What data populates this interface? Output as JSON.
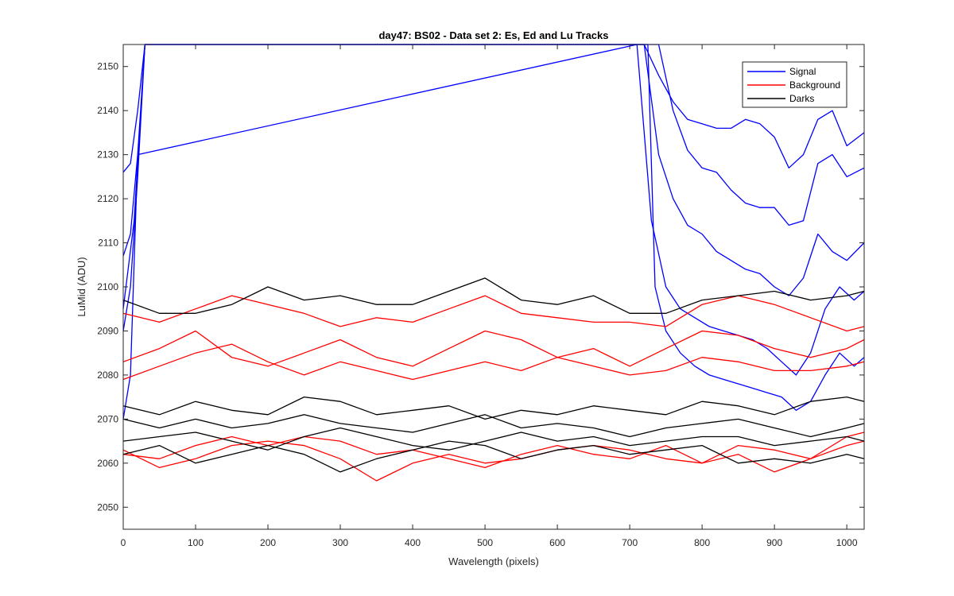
{
  "chart_data": {
    "type": "line",
    "title": "day47: BS02 - Data set 2: Es, Ed and Lu Tracks",
    "xlabel": "Wavelength (pixels)",
    "ylabel": "LuMid (ADU)",
    "xlim": [
      0,
      1024
    ],
    "ylim": [
      2045,
      2155
    ],
    "xticks": [
      0,
      100,
      200,
      300,
      400,
      500,
      600,
      700,
      800,
      900,
      1000
    ],
    "yticks": [
      2050,
      2060,
      2070,
      2080,
      2090,
      2100,
      2110,
      2120,
      2130,
      2140,
      2150
    ],
    "grid": false,
    "legend": {
      "position": "top-right",
      "entries": [
        "Signal",
        "Background",
        "Darks"
      ]
    },
    "colors": {
      "Signal": "#0000ff",
      "Background": "#ff0000",
      "Darks": "#000000"
    },
    "series": [
      {
        "name": "Signal",
        "color": "#0000ff",
        "x": [
          0,
          10,
          20,
          30,
          40,
          50,
          60,
          700,
          720,
          740,
          760,
          780,
          800,
          820,
          840,
          860,
          880,
          900,
          920,
          940,
          960,
          980,
          1000,
          1024
        ],
        "y": [
          2126,
          2128,
          2140,
          2155,
          2155,
          2155,
          2155,
          2155,
          2155,
          2148,
          2142,
          2138,
          2137,
          2136,
          2136,
          2138,
          2137,
          2134,
          2127,
          2130,
          2138,
          2140,
          2132,
          2135
        ]
      },
      {
        "name": "Signal",
        "color": "#0000ff",
        "x": [
          0,
          10,
          20,
          30,
          40,
          740,
          760,
          780,
          800,
          820,
          840,
          860,
          880,
          900,
          920,
          940,
          960,
          980,
          1000,
          1024
        ],
        "y": [
          2107,
          2112,
          2130,
          2155,
          2155,
          2155,
          2140,
          2131,
          2127,
          2126,
          2122,
          2119,
          2118,
          2118,
          2114,
          2115,
          2128,
          2130,
          2125,
          2127
        ]
      },
      {
        "name": "Signal",
        "color": "#0000ff",
        "x": [
          0,
          10,
          20,
          30,
          720,
          740,
          760,
          780,
          800,
          820,
          840,
          860,
          880,
          900,
          920,
          940,
          960,
          980,
          1000,
          1024
        ],
        "y": [
          2090,
          2100,
          2125,
          2155,
          2155,
          2130,
          2120,
          2114,
          2112,
          2108,
          2106,
          2104,
          2103,
          2100,
          2098,
          2102,
          2112,
          2108,
          2106,
          2110
        ]
      },
      {
        "name": "Signal",
        "color": "#0000ff",
        "x": [
          0,
          10,
          20,
          710,
          730,
          750,
          770,
          790,
          810,
          830,
          850,
          870,
          890,
          910,
          930,
          950,
          970,
          990,
          1010,
          1024
        ],
        "y": [
          2070,
          2080,
          2130,
          2155,
          2115,
          2100,
          2095,
          2093,
          2091,
          2090,
          2089,
          2088,
          2086,
          2083,
          2080,
          2085,
          2095,
          2100,
          2097,
          2099
        ]
      },
      {
        "name": "Signal",
        "color": "#0000ff",
        "x": [
          0,
          15,
          30,
          725,
          735,
          750,
          770,
          790,
          810,
          830,
          850,
          870,
          890,
          910,
          930,
          950,
          970,
          990,
          1010,
          1024
        ],
        "y": [
          2095,
          2115,
          2155,
          2155,
          2100,
          2090,
          2085,
          2082,
          2080,
          2079,
          2078,
          2077,
          2076,
          2075,
          2072,
          2074,
          2080,
          2085,
          2082,
          2084
        ]
      },
      {
        "name": "Background",
        "color": "#ff0000",
        "x": [
          0,
          50,
          100,
          150,
          200,
          250,
          300,
          350,
          400,
          450,
          500,
          550,
          600,
          650,
          700,
          750,
          800,
          850,
          900,
          950,
          1000,
          1024
        ],
        "y": [
          2094,
          2092,
          2095,
          2098,
          2096,
          2094,
          2091,
          2093,
          2092,
          2095,
          2098,
          2094,
          2093,
          2092,
          2092,
          2091,
          2096,
          2098,
          2096,
          2093,
          2090,
          2091
        ]
      },
      {
        "name": "Background",
        "color": "#ff0000",
        "x": [
          0,
          50,
          100,
          150,
          200,
          250,
          300,
          350,
          400,
          450,
          500,
          550,
          600,
          650,
          700,
          750,
          800,
          850,
          900,
          950,
          1000,
          1024
        ],
        "y": [
          2083,
          2086,
          2090,
          2084,
          2082,
          2085,
          2088,
          2084,
          2082,
          2086,
          2090,
          2088,
          2084,
          2086,
          2082,
          2086,
          2090,
          2089,
          2086,
          2084,
          2086,
          2088
        ]
      },
      {
        "name": "Background",
        "color": "#ff0000",
        "x": [
          0,
          50,
          100,
          150,
          200,
          250,
          300,
          350,
          400,
          450,
          500,
          550,
          600,
          650,
          700,
          750,
          800,
          850,
          900,
          950,
          1000,
          1024
        ],
        "y": [
          2079,
          2082,
          2085,
          2087,
          2083,
          2080,
          2083,
          2081,
          2079,
          2081,
          2083,
          2081,
          2084,
          2082,
          2080,
          2081,
          2084,
          2083,
          2081,
          2081,
          2082,
          2083
        ]
      },
      {
        "name": "Background",
        "color": "#ff0000",
        "x": [
          0,
          50,
          100,
          150,
          200,
          250,
          300,
          350,
          400,
          450,
          500,
          550,
          600,
          650,
          700,
          750,
          800,
          850,
          900,
          950,
          1000,
          1024
        ],
        "y": [
          2063,
          2059,
          2061,
          2064,
          2065,
          2064,
          2061,
          2056,
          2060,
          2062,
          2060,
          2061,
          2063,
          2064,
          2063,
          2061,
          2060,
          2062,
          2058,
          2061,
          2064,
          2065
        ]
      },
      {
        "name": "Background",
        "color": "#ff0000",
        "x": [
          0,
          50,
          100,
          150,
          200,
          250,
          300,
          350,
          400,
          450,
          500,
          550,
          600,
          650,
          700,
          750,
          800,
          850,
          900,
          950,
          1000,
          1024
        ],
        "y": [
          2062,
          2061,
          2064,
          2066,
          2064,
          2066,
          2065,
          2062,
          2063,
          2061,
          2059,
          2062,
          2064,
          2062,
          2061,
          2064,
          2060,
          2064,
          2063,
          2061,
          2066,
          2067
        ]
      },
      {
        "name": "Darks",
        "color": "#000000",
        "x": [
          0,
          50,
          100,
          150,
          200,
          250,
          300,
          350,
          400,
          450,
          500,
          550,
          600,
          650,
          700,
          750,
          800,
          850,
          900,
          950,
          1000,
          1024
        ],
        "y": [
          2097,
          2094,
          2094,
          2096,
          2100,
          2097,
          2098,
          2096,
          2096,
          2099,
          2102,
          2097,
          2096,
          2098,
          2094,
          2094,
          2097,
          2098,
          2099,
          2097,
          2098,
          2099
        ]
      },
      {
        "name": "Darks",
        "color": "#000000",
        "x": [
          0,
          50,
          100,
          150,
          200,
          250,
          300,
          350,
          400,
          450,
          500,
          550,
          600,
          650,
          700,
          750,
          800,
          850,
          900,
          950,
          1000,
          1024
        ],
        "y": [
          2073,
          2071,
          2074,
          2072,
          2071,
          2075,
          2074,
          2071,
          2072,
          2073,
          2070,
          2072,
          2071,
          2073,
          2072,
          2071,
          2074,
          2073,
          2071,
          2074,
          2075,
          2074
        ]
      },
      {
        "name": "Darks",
        "color": "#000000",
        "x": [
          0,
          50,
          100,
          150,
          200,
          250,
          300,
          350,
          400,
          450,
          500,
          550,
          600,
          650,
          700,
          750,
          800,
          850,
          900,
          950,
          1000,
          1024
        ],
        "y": [
          2070,
          2068,
          2070,
          2068,
          2069,
          2071,
          2069,
          2068,
          2067,
          2069,
          2071,
          2068,
          2069,
          2068,
          2066,
          2068,
          2069,
          2070,
          2068,
          2066,
          2068,
          2069
        ]
      },
      {
        "name": "Darks",
        "color": "#000000",
        "x": [
          0,
          50,
          100,
          150,
          200,
          250,
          300,
          350,
          400,
          450,
          500,
          550,
          600,
          650,
          700,
          750,
          800,
          850,
          900,
          950,
          1000,
          1024
        ],
        "y": [
          2065,
          2066,
          2067,
          2065,
          2063,
          2066,
          2068,
          2066,
          2064,
          2063,
          2065,
          2067,
          2065,
          2066,
          2064,
          2065,
          2066,
          2066,
          2064,
          2065,
          2066,
          2065
        ]
      },
      {
        "name": "Darks",
        "color": "#000000",
        "x": [
          0,
          50,
          100,
          150,
          200,
          250,
          300,
          350,
          400,
          450,
          500,
          550,
          600,
          650,
          700,
          750,
          800,
          850,
          900,
          950,
          1000,
          1024
        ],
        "y": [
          2062,
          2064,
          2060,
          2062,
          2064,
          2062,
          2058,
          2061,
          2063,
          2065,
          2064,
          2061,
          2063,
          2064,
          2062,
          2063,
          2064,
          2060,
          2061,
          2060,
          2062,
          2061
        ]
      }
    ]
  }
}
